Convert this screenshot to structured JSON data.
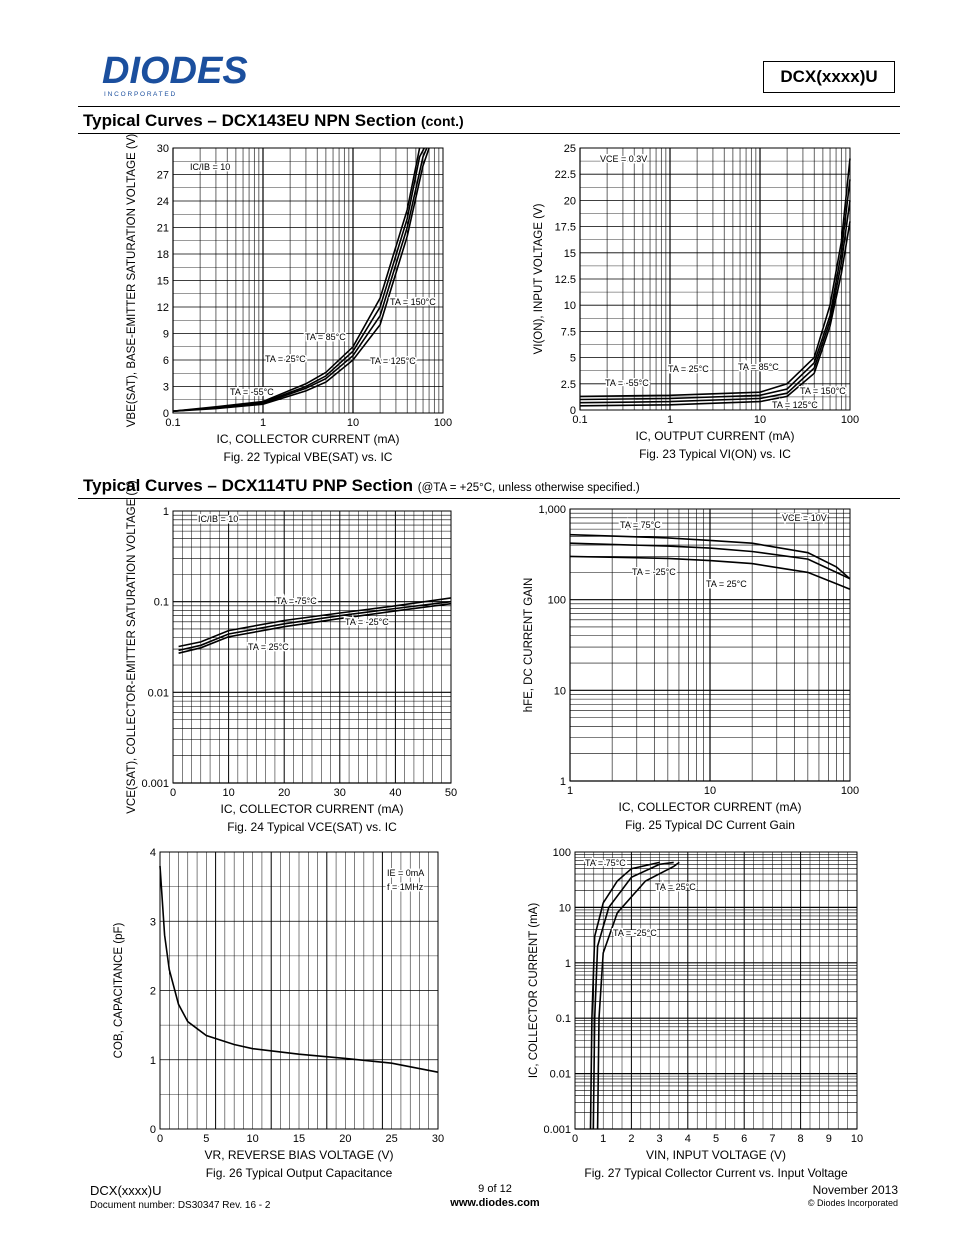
{
  "header": {
    "brand": "DIODES",
    "brand_sub": "I N C O R P O R A T E D",
    "part": "DCX(xxxx)U"
  },
  "section1": {
    "title": "Typical Curves – DCX143EU  NPN Section",
    "suffix": "(cont.)"
  },
  "section2": {
    "title": "Typical Curves – DCX114TU  PNP Section",
    "note": "(@TA = +25°C, unless otherwise specified.)"
  },
  "chart_data": [
    {
      "id": "fig22",
      "type": "line",
      "title": "Fig. 22 Typical VBE(SAT) vs. IC",
      "xlabel": "IC, COLLECTOR CURRENT (mA)",
      "ylabel": "VBE(SAT), BASE-EMITTER SATURATION VOLTAGE (V)",
      "x_scale": "log",
      "xlim": [
        0.1,
        100
      ],
      "ylim": [
        0,
        30
      ],
      "x_ticks": [
        "0.1",
        "1",
        "10",
        "100"
      ],
      "y_ticks": [
        "0",
        "3",
        "6",
        "9",
        "12",
        "15",
        "18",
        "21",
        "24",
        "27",
        "30"
      ],
      "annotations": [
        "IC/IB = 10",
        "TA = 150°C",
        "TA = 85°C",
        "TA = 25°C",
        "TA = 125°C",
        "TA = -55°C"
      ],
      "series": [
        {
          "values": [
            [
              0.1,
              0.2
            ],
            [
              0.3,
              0.5
            ],
            [
              1,
              1
            ],
            [
              3,
              2.5
            ],
            [
              5,
              3.5
            ],
            [
              10,
              6
            ],
            [
              20,
              10
            ],
            [
              40,
              20
            ],
            [
              60,
              28
            ],
            [
              70,
              30
            ]
          ]
        },
        {
          "values": [
            [
              0.1,
              0.2
            ],
            [
              0.3,
              0.6
            ],
            [
              1,
              1.1
            ],
            [
              3,
              2.8
            ],
            [
              5,
              3.9
            ],
            [
              10,
              6.5
            ],
            [
              20,
              11
            ],
            [
              40,
              21
            ],
            [
              60,
              29
            ],
            [
              66,
              30
            ]
          ]
        },
        {
          "values": [
            [
              0.1,
              0.2
            ],
            [
              0.3,
              0.6
            ],
            [
              1,
              1.2
            ],
            [
              3,
              3
            ],
            [
              5,
              4.2
            ],
            [
              10,
              7
            ],
            [
              20,
              12
            ],
            [
              40,
              22
            ],
            [
              55,
              29
            ],
            [
              62,
              30
            ]
          ]
        },
        {
          "values": [
            [
              0.1,
              0.2
            ],
            [
              0.3,
              0.7
            ],
            [
              1,
              1.3
            ],
            [
              3,
              3.3
            ],
            [
              5,
              4.6
            ],
            [
              10,
              7.5
            ],
            [
              20,
              13
            ],
            [
              40,
              23
            ],
            [
              55,
              30
            ]
          ]
        }
      ]
    },
    {
      "id": "fig23",
      "type": "line",
      "title": "Fig. 23 Typical VI(ON) vs. IC",
      "xlabel": "IC, OUTPUT CURRENT (mA)",
      "ylabel": "VI(ON), INPUT VOLTAGE (V)",
      "x_scale": "log",
      "xlim": [
        0.1,
        100
      ],
      "ylim": [
        0,
        25
      ],
      "x_ticks": [
        "0.1",
        "1",
        "10",
        "100"
      ],
      "y_ticks": [
        "0",
        "2.5",
        "5",
        "7.5",
        "10",
        "12.5",
        "15",
        "17.5",
        "20",
        "22.5",
        "25"
      ],
      "annotations": [
        "VCE = 0.3V",
        "TA = -55°C",
        "TA = 25°C",
        "TA = 85°C",
        "TA = 150°C",
        "TA = 125°C"
      ],
      "series": [
        {
          "values": [
            [
              0.1,
              1.3
            ],
            [
              1,
              1.4
            ],
            [
              10,
              1.7
            ],
            [
              20,
              2.5
            ],
            [
              40,
              5
            ],
            [
              60,
              10
            ],
            [
              80,
              16
            ],
            [
              100,
              24
            ]
          ]
        },
        {
          "values": [
            [
              0.1,
              1
            ],
            [
              1,
              1.1
            ],
            [
              10,
              1.4
            ],
            [
              20,
              2
            ],
            [
              40,
              4.5
            ],
            [
              60,
              9
            ],
            [
              80,
              15
            ],
            [
              100,
              22
            ]
          ]
        },
        {
          "values": [
            [
              0.1,
              0.7
            ],
            [
              1,
              0.8
            ],
            [
              10,
              1.1
            ],
            [
              20,
              1.6
            ],
            [
              40,
              4
            ],
            [
              60,
              8.5
            ],
            [
              80,
              14
            ],
            [
              100,
              20
            ]
          ]
        },
        {
          "values": [
            [
              0.1,
              0.4
            ],
            [
              1,
              0.5
            ],
            [
              10,
              0.8
            ],
            [
              20,
              1.3
            ],
            [
              40,
              3.5
            ],
            [
              60,
              8
            ],
            [
              80,
              13
            ],
            [
              100,
              18
            ]
          ]
        }
      ]
    },
    {
      "id": "fig24",
      "type": "line",
      "title": "Fig. 24 Typical VCE(SAT) vs. IC",
      "xlabel": "IC, COLLECTOR CURRENT (mA)",
      "ylabel": "VCE(SAT), COLLECTOR-EMITTER SATURATION VOLTAGE (V)",
      "y_scale": "log",
      "xlim": [
        0,
        50
      ],
      "ylim": [
        0.001,
        1
      ],
      "x_ticks": [
        "0",
        "10",
        "20",
        "30",
        "40",
        "50"
      ],
      "y_ticks": [
        "0.001",
        "0.01",
        "0.1",
        "1"
      ],
      "annotations": [
        "IC/IB = 10",
        "TA = 75°C",
        "TA = -25°C",
        "TA = 25°C"
      ],
      "series": [
        {
          "values": [
            [
              1,
              0.032
            ],
            [
              5,
              0.036
            ],
            [
              10,
              0.048
            ],
            [
              20,
              0.062
            ],
            [
              30,
              0.075
            ],
            [
              40,
              0.09
            ],
            [
              50,
              0.11
            ]
          ]
        },
        {
          "values": [
            [
              1,
              0.029
            ],
            [
              5,
              0.033
            ],
            [
              10,
              0.044
            ],
            [
              20,
              0.057
            ],
            [
              30,
              0.07
            ],
            [
              40,
              0.084
            ],
            [
              50,
              0.1
            ]
          ]
        },
        {
          "values": [
            [
              1,
              0.027
            ],
            [
              5,
              0.031
            ],
            [
              10,
              0.041
            ],
            [
              20,
              0.053
            ],
            [
              30,
              0.065
            ],
            [
              40,
              0.079
            ],
            [
              50,
              0.095
            ]
          ]
        }
      ]
    },
    {
      "id": "fig25",
      "type": "line",
      "title": "Fig. 25 Typical DC Current Gain",
      "xlabel": "IC, COLLECTOR CURRENT (mA)",
      "ylabel": "hFE, DC CURRENT GAIN",
      "x_scale": "log",
      "y_scale": "log",
      "xlim": [
        1,
        100
      ],
      "ylim": [
        1,
        1000
      ],
      "x_ticks": [
        "1",
        "10",
        "100"
      ],
      "y_ticks": [
        "1",
        "10",
        "100",
        "1,000"
      ],
      "annotations": [
        "VCE = 10V",
        "TA = 75°C",
        "TA = -25°C",
        "TA = 25°C"
      ],
      "series": [
        {
          "values": [
            [
              1,
              520
            ],
            [
              5,
              480
            ],
            [
              10,
              450
            ],
            [
              20,
              420
            ],
            [
              50,
              330
            ],
            [
              80,
              230
            ],
            [
              100,
              170
            ]
          ]
        },
        {
          "values": [
            [
              1,
              420
            ],
            [
              5,
              390
            ],
            [
              10,
              370
            ],
            [
              20,
              340
            ],
            [
              50,
              280
            ],
            [
              80,
              200
            ],
            [
              100,
              170
            ]
          ]
        },
        {
          "values": [
            [
              1,
              300
            ],
            [
              5,
              285
            ],
            [
              10,
              270
            ],
            [
              20,
              250
            ],
            [
              50,
              200
            ],
            [
              80,
              150
            ],
            [
              100,
              130
            ]
          ]
        }
      ]
    },
    {
      "id": "fig26",
      "type": "line",
      "title": "Fig. 26 Typical Output Capacitance",
      "xlabel": "VR, REVERSE BIAS VOLTAGE (V)",
      "ylabel": "COB, CAPACITANCE (pF)",
      "xlim": [
        0,
        30
      ],
      "ylim": [
        0,
        4
      ],
      "x_ticks": [
        "0",
        "5",
        "10",
        "15",
        "20",
        "25",
        "30"
      ],
      "y_ticks": [
        "0",
        "1",
        "2",
        "3",
        "4"
      ],
      "annotations": [
        "IE = 0mA",
        "f = 1MHz"
      ],
      "series": [
        {
          "values": [
            [
              0,
              3.8
            ],
            [
              0.5,
              2.8
            ],
            [
              1,
              2.3
            ],
            [
              2,
              1.8
            ],
            [
              3,
              1.55
            ],
            [
              5,
              1.35
            ],
            [
              8,
              1.22
            ],
            [
              10,
              1.16
            ],
            [
              15,
              1.08
            ],
            [
              20,
              1.02
            ],
            [
              25,
              0.95
            ],
            [
              30,
              0.82
            ]
          ]
        }
      ]
    },
    {
      "id": "fig27",
      "type": "line",
      "title": "Fig. 27 Typical Collector Current vs. Input Voltage",
      "xlabel": "VIN, INPUT VOLTAGE (V)",
      "ylabel": "IC, COLLECTOR CURRENT (mA)",
      "y_scale": "log",
      "xlim": [
        0,
        10
      ],
      "ylim": [
        0.001,
        100
      ],
      "x_ticks": [
        "0",
        "1",
        "2",
        "3",
        "4",
        "5",
        "6",
        "7",
        "8",
        "9",
        "10"
      ],
      "y_ticks": [
        "0.001",
        "0.01",
        "0.1",
        "1",
        "10",
        "100"
      ],
      "annotations": [
        "TA = 75°C",
        "TA = 25°C",
        "TA = -25°C"
      ],
      "series": [
        {
          "values": [
            [
              0.55,
              0.001
            ],
            [
              0.6,
              0.1
            ],
            [
              0.7,
              3
            ],
            [
              1,
              12
            ],
            [
              1.5,
              30
            ],
            [
              2,
              50
            ],
            [
              3,
              65
            ]
          ]
        },
        {
          "values": [
            [
              0.65,
              0.001
            ],
            [
              0.7,
              0.1
            ],
            [
              0.8,
              2
            ],
            [
              1.2,
              10
            ],
            [
              2,
              35
            ],
            [
              3,
              60
            ],
            [
              3.5,
              65
            ]
          ]
        },
        {
          "values": [
            [
              0.8,
              0.001
            ],
            [
              0.85,
              0.1
            ],
            [
              1,
              1.5
            ],
            [
              1.5,
              8
            ],
            [
              2.5,
              30
            ],
            [
              3.5,
              55
            ],
            [
              3.7,
              65
            ]
          ]
        }
      ]
    }
  ],
  "footer": {
    "part": "DCX(xxxx)U",
    "doc": "Document number: DS30347 Rev. 16 - 2",
    "page": "9 of 12",
    "url": "www.diodes.com",
    "date": "November 2013",
    "copyright": "© Diodes Incorporated"
  }
}
